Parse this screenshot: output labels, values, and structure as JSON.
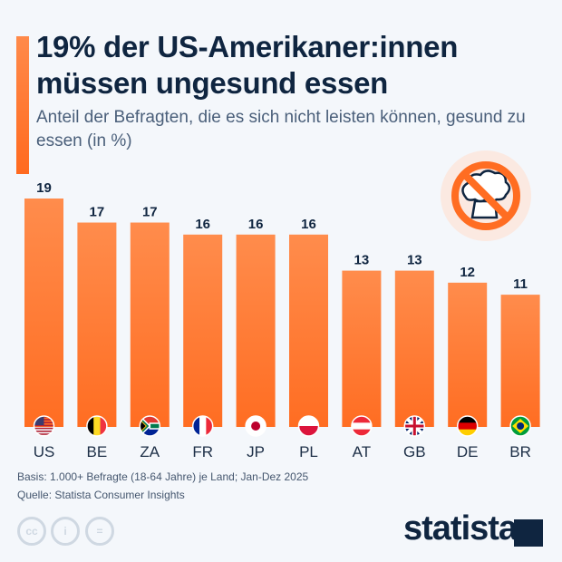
{
  "header": {
    "title": "19% der US-Amerikaner:innen müssen ungesund essen",
    "subtitle": "Anteil der Befragten, die es sich nicht leisten können, gesund zu essen (in %)"
  },
  "chart_data": {
    "type": "bar",
    "title": "19% der US-Amerikaner:innen müssen ungesund essen",
    "subtitle": "Anteil der Befragten, die es sich nicht leisten können, gesund zu essen (in %)",
    "categories": [
      "US",
      "BE",
      "ZA",
      "FR",
      "JP",
      "PL",
      "AT",
      "GB",
      "DE",
      "BR"
    ],
    "values": [
      19,
      17,
      17,
      16,
      16,
      16,
      13,
      13,
      12,
      11
    ],
    "ylim": [
      0,
      19
    ],
    "grid": false,
    "bar_color": "#ff7a30"
  },
  "icon": "no-broccoli-icon",
  "footer": {
    "basis": "Basis: 1.000+ Befragte (18-64 Jahre) je Land; Jan-Dez 2025",
    "source": "Quelle: Statista Consumer Insights",
    "brand": "statista"
  },
  "colors": {
    "accent": "#ff7a30",
    "title": "#0f2540",
    "subtitle": "#4a5f7a"
  }
}
